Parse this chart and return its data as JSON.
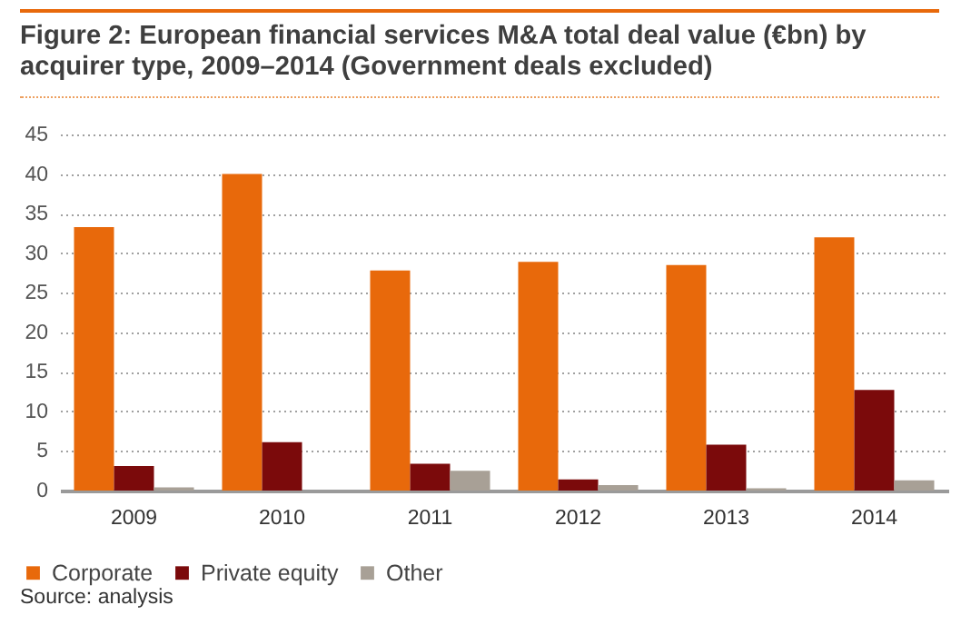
{
  "chart_data": {
    "type": "bar",
    "title": "Figure 2: European financial services M&A total deal value (€bn) by acquirer type, 2009–2014 (Government deals excluded)",
    "categories": [
      "2009",
      "2010",
      "2011",
      "2012",
      "2013",
      "2014"
    ],
    "series": [
      {
        "name": "Corporate",
        "color": "#e8690b",
        "values": [
          33.3,
          40,
          27.8,
          28.9,
          28.5,
          32
        ]
      },
      {
        "name": "Private equity",
        "color": "#7b0a0b",
        "values": [
          3.1,
          6.1,
          3.4,
          1.4,
          5.8,
          12.7
        ]
      },
      {
        "name": "Other",
        "color": "#a8a096",
        "values": [
          0.4,
          0,
          2.5,
          0.7,
          0.3,
          1.3
        ]
      }
    ],
    "ylim": [
      0,
      45
    ],
    "yticks": [
      0,
      5,
      10,
      15,
      20,
      25,
      30,
      35,
      40,
      45
    ],
    "grid": "y",
    "legend": "bottom left",
    "annotations": [
      "Source: analysis"
    ]
  }
}
